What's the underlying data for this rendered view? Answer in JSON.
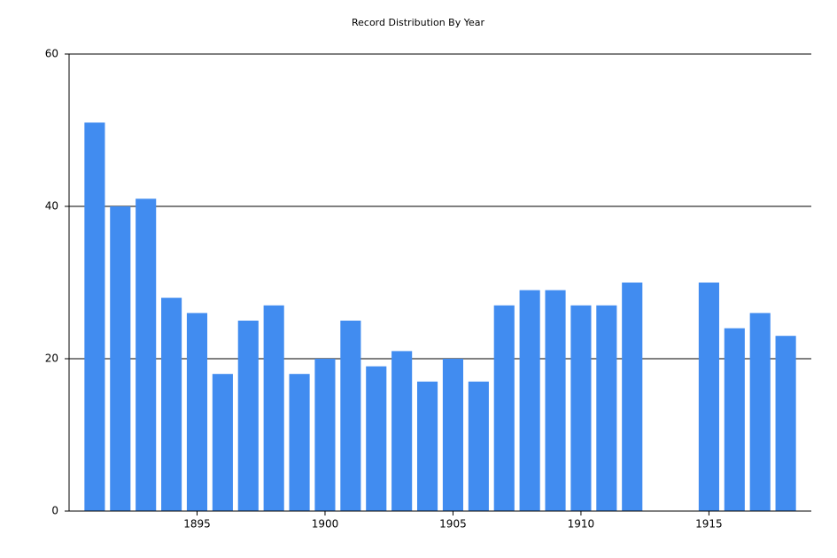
{
  "chart_data": {
    "type": "bar",
    "title": "Record Distribution By Year",
    "x": [
      1891,
      1892,
      1893,
      1894,
      1895,
      1896,
      1897,
      1898,
      1899,
      1900,
      1901,
      1902,
      1903,
      1904,
      1905,
      1906,
      1907,
      1908,
      1909,
      1910,
      1911,
      1912,
      1915,
      1916,
      1917,
      1918
    ],
    "values": [
      51,
      40,
      41,
      28,
      26,
      18,
      25,
      27,
      18,
      20,
      25,
      19,
      21,
      17,
      20,
      17,
      27,
      29,
      29,
      27,
      27,
      30,
      30,
      24,
      26,
      23
    ],
    "color": "#418cf0",
    "xlim": [
      1890,
      1919
    ],
    "xticks": [
      1895,
      1900,
      1905,
      1910,
      1915
    ],
    "ylim": [
      0,
      60
    ],
    "yticks": [
      0,
      20,
      40,
      60
    ],
    "grid": true
  }
}
